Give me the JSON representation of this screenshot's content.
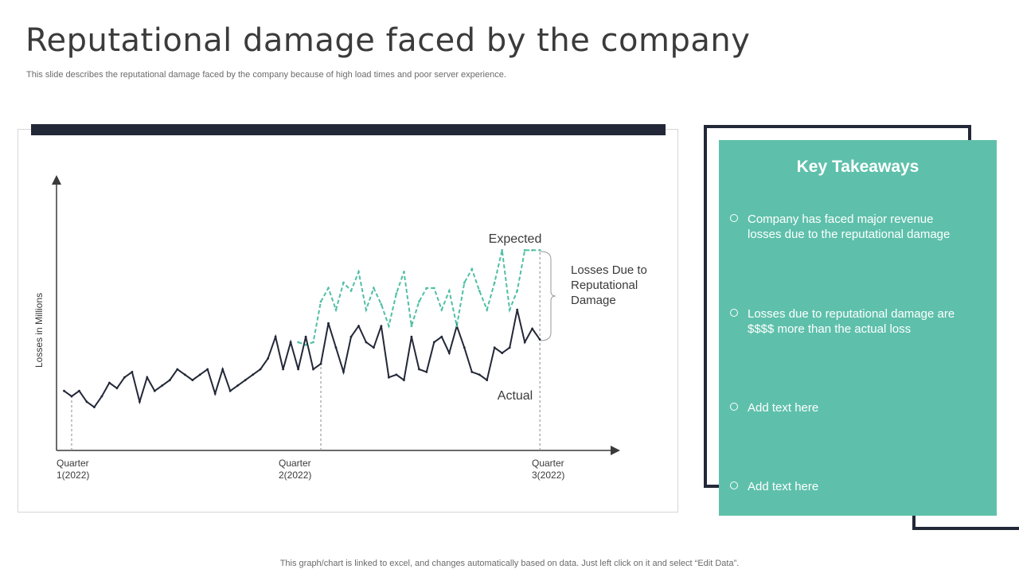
{
  "header": {
    "title": "Reputational damage faced by the company",
    "subtitle": "This slide describes the reputational damage faced by the company because of high load times and poor server experience."
  },
  "chart_data": {
    "type": "line",
    "ylabel": "Losses in Millions",
    "xlabel": "",
    "x_ticks": [
      {
        "line1": "Quarter",
        "line2": "1(2022)",
        "at": 1
      },
      {
        "line1": "Quarter",
        "line2": "2(2022)",
        "at": 34
      },
      {
        "line1": "Quarter",
        "line2": "3(2022)",
        "at": 63
      }
    ],
    "ylim": [
      0,
      100
    ],
    "xlim": [
      -1,
      73
    ],
    "series": [
      {
        "name": "Actual",
        "color": "#232838",
        "style": "solid",
        "x": [
          0,
          1,
          2,
          3,
          4,
          5,
          6,
          7,
          8,
          9,
          10,
          11,
          12,
          13,
          14,
          15,
          16,
          17,
          18,
          19,
          20,
          21,
          22,
          23,
          24,
          25,
          26,
          27,
          28,
          29,
          30,
          31,
          32,
          33,
          34,
          35,
          36,
          37,
          38,
          39,
          40,
          41,
          42,
          43,
          44,
          45,
          46,
          47,
          48,
          49,
          50,
          51,
          52,
          53,
          54,
          55,
          56,
          57,
          58,
          59,
          60,
          61,
          62,
          63
        ],
        "values": [
          22,
          20,
          22,
          18,
          16,
          20,
          25,
          23,
          27,
          29,
          18,
          27,
          22,
          24,
          26,
          30,
          28,
          26,
          28,
          30,
          21,
          30,
          22,
          24,
          26,
          28,
          30,
          34,
          42,
          30,
          40,
          30,
          42,
          30,
          32,
          47,
          38,
          29,
          42,
          46,
          40,
          38,
          46,
          27,
          28,
          26,
          42,
          30,
          29,
          40,
          42,
          36,
          46,
          38,
          29,
          28,
          26,
          38,
          36,
          38,
          52,
          40,
          45,
          41
        ]
      },
      {
        "name": "Expected",
        "color": "#4fbfa4",
        "style": "dashed",
        "x": [
          31,
          32,
          33,
          34,
          35,
          36,
          37,
          38,
          39,
          40,
          41,
          42,
          43,
          44,
          45,
          46,
          47,
          48,
          49,
          50,
          51,
          52,
          53,
          54,
          55,
          56,
          57,
          58,
          59,
          60,
          61,
          62,
          63
        ],
        "values": [
          40,
          39,
          40,
          55,
          60,
          52,
          62,
          59,
          66,
          52,
          60,
          54,
          46,
          58,
          66,
          46,
          55,
          60,
          60,
          52,
          59,
          46,
          62,
          67,
          59,
          52,
          62,
          74,
          52,
          59,
          74,
          74,
          74
        ]
      }
    ],
    "annotations": {
      "expected_label": "Expected",
      "actual_label": "Actual",
      "gap_label_lines": [
        "Losses Due to",
        "Reputational",
        "Damage"
      ]
    }
  },
  "takeaways": {
    "title": "Key Takeaways",
    "items": [
      {
        "text_line1": "Company has faced major revenue",
        "text_line2": "losses due to the reputational damage"
      },
      {
        "text_line1": "Losses due to reputational damage are",
        "text_line2": "$$$$ more than the actual loss"
      },
      {
        "text_line1": "Add text here",
        "text_line2": ""
      },
      {
        "text_line1": "Add text here",
        "text_line2": ""
      }
    ]
  },
  "footer": {
    "note": "This graph/chart is linked to excel, and changes automatically based on data. Just left click on it and select “Edit Data”."
  },
  "colors": {
    "accent": "#5ec0ab",
    "dark": "#232838",
    "expected_line": "#4fbfa4"
  }
}
